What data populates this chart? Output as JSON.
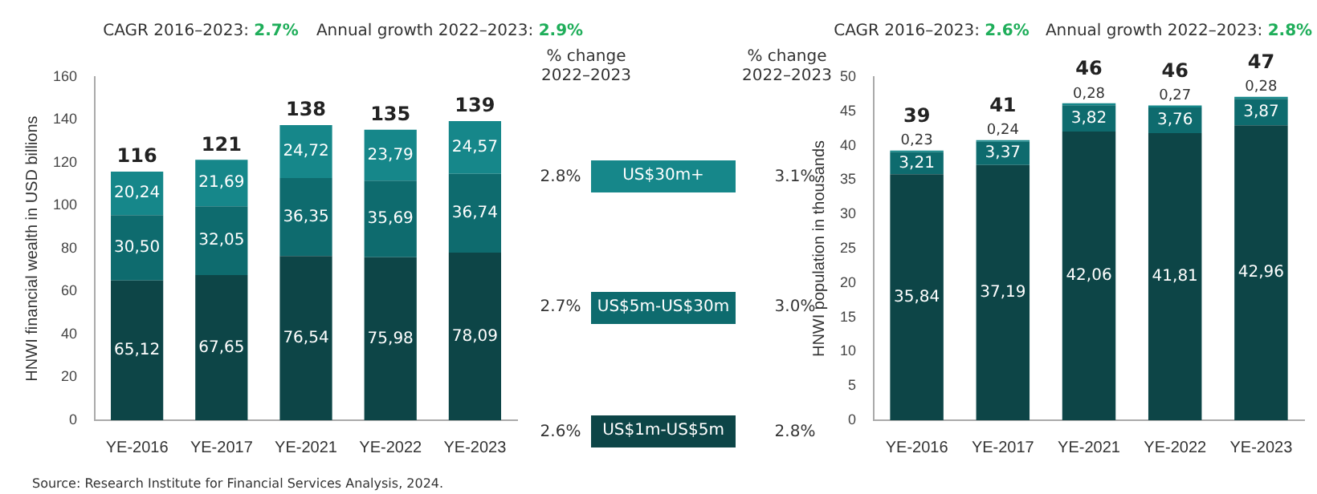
{
  "chart_data": [
    {
      "type": "bar",
      "stacked": true,
      "ylabel": "HNWI financial wealth in USD billions",
      "categories": [
        "YE-2016",
        "YE-2017",
        "YE-2021",
        "YE-2022",
        "YE-2023"
      ],
      "series": [
        {
          "name": "US$1m-US$5m",
          "color": "#0d4547",
          "values": [
            65.12,
            67.65,
            76.54,
            75.98,
            78.09
          ],
          "value_labels": [
            "65,12",
            "67,65",
            "76,54",
            "75,98",
            "78,09"
          ]
        },
        {
          "name": "US$5m-US$30m",
          "color": "#0e6b6e",
          "values": [
            30.5,
            32.05,
            36.35,
            35.69,
            36.74
          ],
          "value_labels": [
            "30,50",
            "32,05",
            "36,35",
            "35,69",
            "36,74"
          ]
        },
        {
          "name": "US$30m+",
          "color": "#16878a",
          "values": [
            20.24,
            21.69,
            24.72,
            23.79,
            24.57
          ],
          "value_labels": [
            "20,24",
            "21,69",
            "24,72",
            "23,79",
            "24,57"
          ]
        }
      ],
      "totals": [
        "116",
        "121",
        "138",
        "135",
        "139"
      ],
      "ylim": [
        0,
        160
      ],
      "yticks": [
        0,
        20,
        40,
        60,
        80,
        100,
        120,
        140,
        160
      ],
      "grid": false,
      "legend": "right",
      "annotations": [
        "CAGR 2016–2023: 2.7%",
        "Annual growth 2022–2023: 2.9%",
        "% change\n2022–2023",
        "2.8%",
        "2.7%",
        "2.6%",
        "Source: Research Institute for Financial Services Analysis, 2024."
      ]
    },
    {
      "type": "bar",
      "stacked": true,
      "ylabel": "HNWI population in thousands",
      "categories": [
        "YE-2016",
        "YE-2017",
        "YE-2021",
        "YE-2022",
        "YE-2023"
      ],
      "series": [
        {
          "color": "#0d4547",
          "values": [
            35.84,
            37.19,
            42.06,
            41.81,
            42.96
          ],
          "value_labels": [
            "35,84",
            "37,19",
            "42,06",
            "41,81",
            "42,96"
          ]
        },
        {
          "color": "#0e6b6e",
          "values": [
            3.21,
            3.37,
            3.82,
            3.76,
            3.87
          ],
          "value_labels": [
            "3,21",
            "3,37",
            "3,82",
            "3,76",
            "3,87"
          ]
        },
        {
          "color": "#16878a",
          "values": [
            0.23,
            0.24,
            0.28,
            0.27,
            0.28
          ],
          "value_labels": [
            "0,23",
            "0,24",
            "0,28",
            "0,27",
            "0,28"
          ]
        }
      ],
      "totals": [
        "39",
        "41",
        "46",
        "46",
        "47"
      ],
      "ylim": [
        0,
        50
      ],
      "yticks": [
        0,
        5,
        10,
        15,
        20,
        25,
        30,
        35,
        40,
        45,
        50
      ],
      "grid": false,
      "annotations": [
        "CAGR 2016–2023: 2.6%",
        "Annual growth 2022–2023: 2.8%",
        "% change\n2022–2023",
        "3.1%",
        "3.0%",
        "2.8%"
      ]
    }
  ]
}
